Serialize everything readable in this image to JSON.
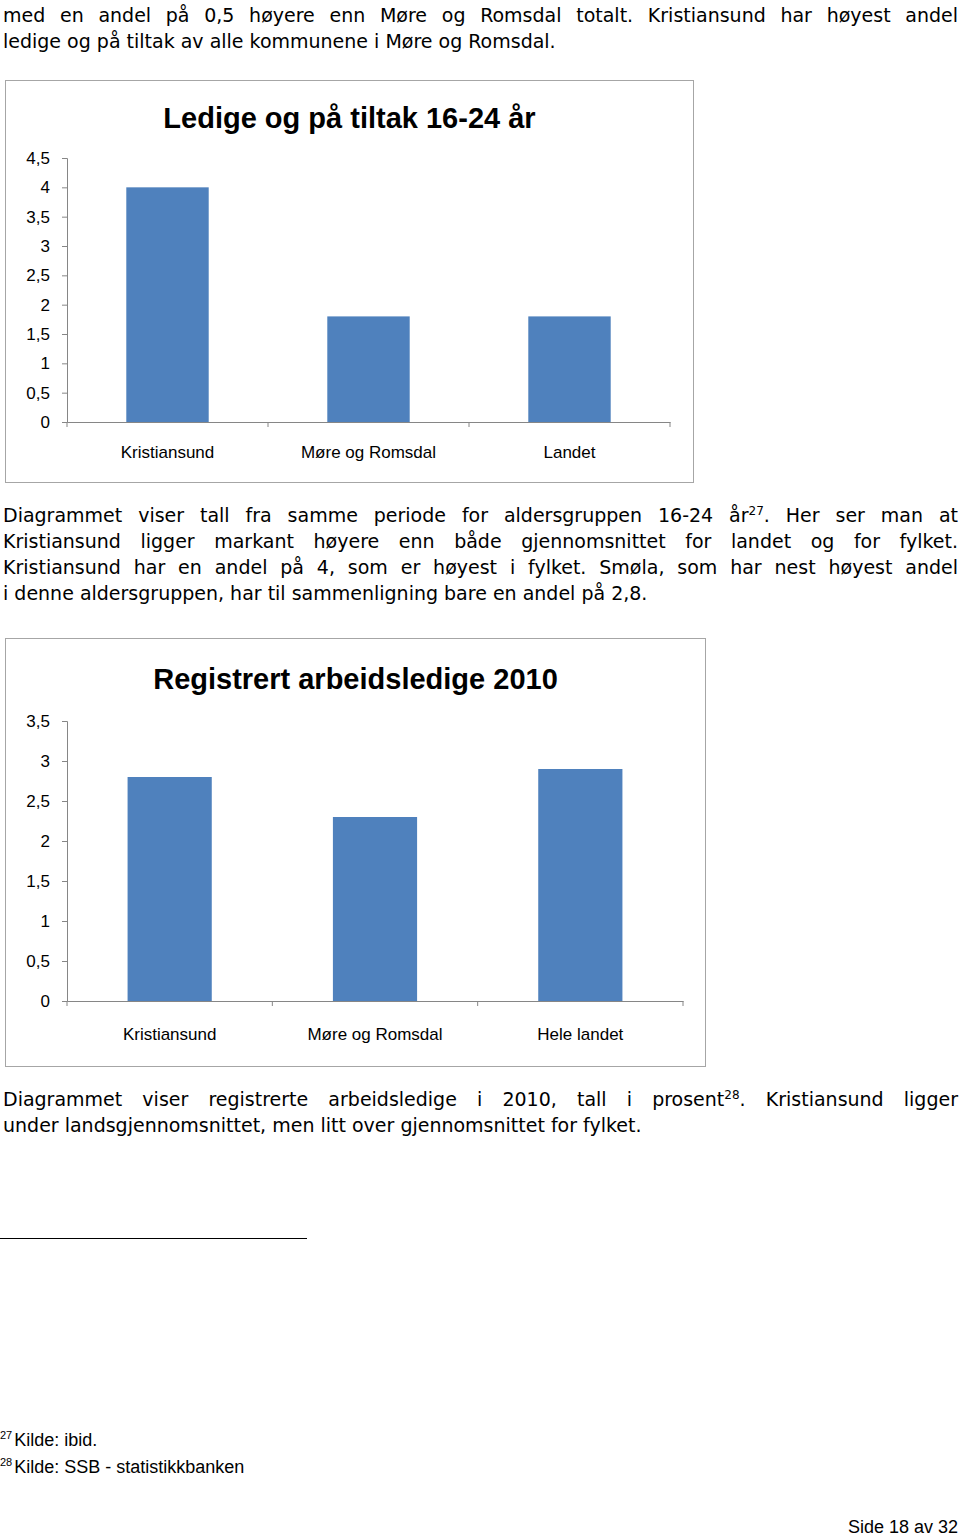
{
  "document": {
    "paragraphs": [
      {
        "lines": [
          [
            "med en andel på 0,5 høyere enn Møre og Romsdal totalt. Kristiansund har høyest andel"
          ],
          [
            "ledige og på tiltak av alle kommunene i Møre og Romsdal."
          ]
        ]
      },
      {
        "lines": [
          [
            "Diagrammet viser tall fra samme periode for aldersgruppen 16-24 år",
            {
              "sup": "27"
            },
            ". Her ser man at"
          ],
          [
            "Kristiansund ligger markant høyere enn både gjennomsnittet for landet og for fylket."
          ],
          [
            "Kristiansund har en andel på 4, som er høyest i fylket. Smøla, som har nest høyest andel"
          ],
          [
            "i denne aldersgruppen, har til sammenligning bare en andel på 2,8."
          ]
        ]
      },
      {
        "lines": [
          [
            "Diagrammet viser registrerte arbeidsledige i 2010, tall i prosent",
            {
              "sup": "28"
            },
            ". Kristiansund ligger"
          ],
          [
            "under landsgjennomsnittet, men litt over gjennomsnittet for fylket."
          ]
        ]
      }
    ],
    "footnotes": [
      {
        "sup": "27",
        "text": "Kilde: ibid."
      },
      {
        "sup": "28",
        "text": "Kilde: SSB - statistikkbanken"
      }
    ],
    "page_number": "Side 18 av 32"
  },
  "chart_data": [
    {
      "type": "bar",
      "title": "Ledige og på tiltak 16-24 år",
      "categories": [
        "Kristiansund",
        "Møre og Romsdal",
        "Landet"
      ],
      "values": [
        4,
        1.8,
        1.8
      ],
      "color": "#4f81bd",
      "ylim": [
        0,
        4.5
      ],
      "yticks": [
        0,
        {
          "value": 0.5,
          "label": "0,5"
        },
        1,
        {
          "value": 1.5,
          "label": "1,5"
        },
        2,
        {
          "value": 2.5,
          "label": "2,5"
        },
        3,
        {
          "value": 3.5,
          "label": "3,5"
        },
        4,
        {
          "value": 4.5,
          "label": "4,5"
        }
      ],
      "grid": false
    },
    {
      "type": "bar",
      "title": "Registrert arbeidsledige 2010",
      "categories": [
        "Kristiansund",
        "Møre og Romsdal",
        "Hele landet"
      ],
      "values": [
        2.8,
        2.3,
        2.9
      ],
      "color": "#4f81bd",
      "ylim": [
        0,
        3.5
      ],
      "yticks": [
        0,
        {
          "value": 0.5,
          "label": "0,5"
        },
        1,
        {
          "value": 1.5,
          "label": "1,5"
        },
        2,
        {
          "value": 2.5,
          "label": "2,5"
        },
        3,
        {
          "value": 3.5,
          "label": "3,5"
        }
      ],
      "grid": false
    }
  ]
}
